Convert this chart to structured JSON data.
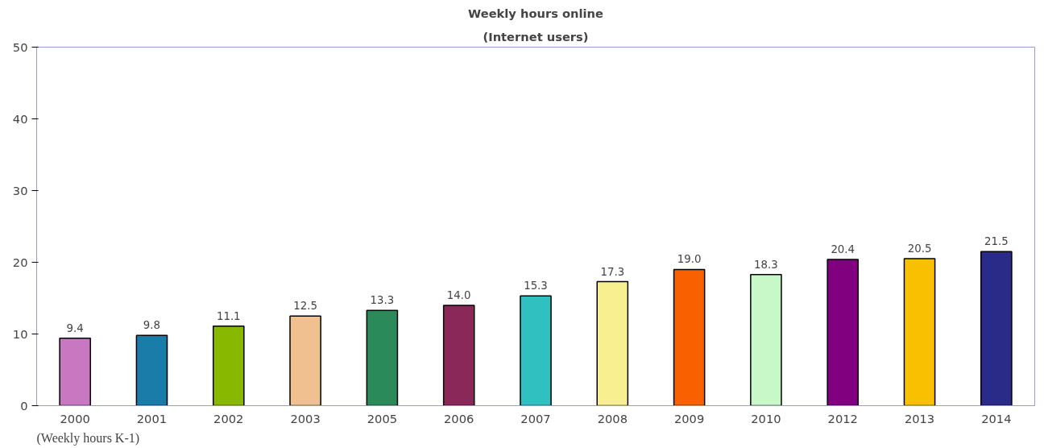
{
  "chart_data": {
    "type": "bar",
    "title": "Weekly hours online",
    "subtitle": "(Internet users)",
    "categories": [
      "2000",
      "2001",
      "2002",
      "2003",
      "2005",
      "2006",
      "2007",
      "2008",
      "2009",
      "2010",
      "2012",
      "2013",
      "2014"
    ],
    "values": [
      9.4,
      9.8,
      11.1,
      12.5,
      13.3,
      14.0,
      15.3,
      17.3,
      19.0,
      18.3,
      20.4,
      20.5,
      21.5
    ],
    "value_labels": [
      "9.4",
      "9.8",
      "11.1",
      "12.5",
      "13.3",
      "14.0",
      "15.3",
      "17.3",
      "19.0",
      "18.3",
      "20.4",
      "20.5",
      "21.5"
    ],
    "colors": [
      "#c878c0",
      "#1a7ca8",
      "#88b800",
      "#f0c090",
      "#2a8a5a",
      "#8a2858",
      "#30c0c0",
      "#f8f090",
      "#f86000",
      "#c8f8c8",
      "#800080",
      "#f8c000",
      "#2a2a88"
    ],
    "ylim": [
      0,
      50
    ],
    "yticks": [
      0,
      10,
      20,
      30,
      40,
      50
    ],
    "grid": false,
    "annotations": [
      "(Weekly hours K-1)"
    ]
  }
}
